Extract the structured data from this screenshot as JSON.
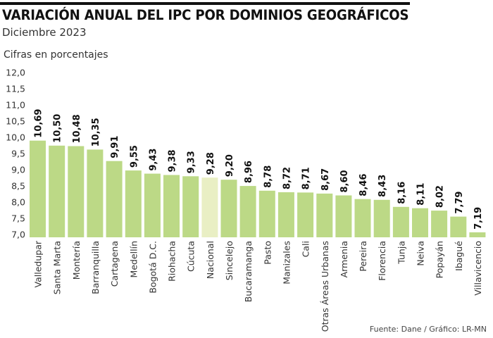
{
  "header": {
    "title": "VARIACIÓN ANUAL DEL IPC POR DOMINIOS GEOGRÁFICOS",
    "subtitle": "Diciembre 2023",
    "units": "Cifras en porcentajes"
  },
  "footer": {
    "source": "Fuente: Dane / Gráfico: LR-MN"
  },
  "colors": {
    "bar": "#bcd986",
    "highlight_bar": "#e9efc4",
    "rule": "#111111"
  },
  "chart_data": {
    "type": "bar",
    "title": "VARIACIÓN ANUAL DEL IPC POR DOMINIOS GEOGRÁFICOS",
    "subtitle": "Diciembre 2023",
    "ylabel": "Cifras en porcentajes",
    "xlabel": "",
    "ylim": [
      7.0,
      12.0
    ],
    "yticks": [
      "12,0",
      "11,5",
      "11,0",
      "10,5",
      "10,0",
      "9,5",
      "9,0",
      "8,5",
      "8,0",
      "7,5",
      "7,0"
    ],
    "grid": false,
    "legend": "none",
    "highlight": "Nacional",
    "categories": [
      "Valledupar",
      "Santa Marta",
      "Montería",
      "Barranquilla",
      "Cartagena",
      "Medellín",
      "Bogotá D.C.",
      "Riohacha",
      "Cúcuta",
      "Nacional",
      "Sincelejo",
      "Bucaramanga",
      "Pasto",
      "Manizales",
      "Cali",
      "Otras Áreas Urbanas",
      "Armenia",
      "Pereira",
      "Florencia",
      "Tunja",
      "Neiva",
      "Popayán",
      "Ibagué",
      "Villavicencio"
    ],
    "values": [
      10.69,
      10.5,
      10.48,
      10.35,
      9.91,
      9.55,
      9.43,
      9.38,
      9.33,
      9.28,
      9.2,
      8.96,
      8.78,
      8.72,
      8.71,
      8.67,
      8.6,
      8.46,
      8.43,
      8.16,
      8.11,
      8.02,
      7.79,
      7.19
    ],
    "value_labels": [
      "10,69",
      "10,50",
      "10,48",
      "10,35",
      "9,91",
      "9,55",
      "9,43",
      "9,38",
      "9,33",
      "9,28",
      "9,20",
      "8,96",
      "8,78",
      "8,72",
      "8,71",
      "8,67",
      "8,60",
      "8,46",
      "8,43",
      "8,16",
      "8,11",
      "8,02",
      "7,79",
      "7,19"
    ],
    "source": "Fuente: Dane / Gráfico: LR-MN"
  }
}
